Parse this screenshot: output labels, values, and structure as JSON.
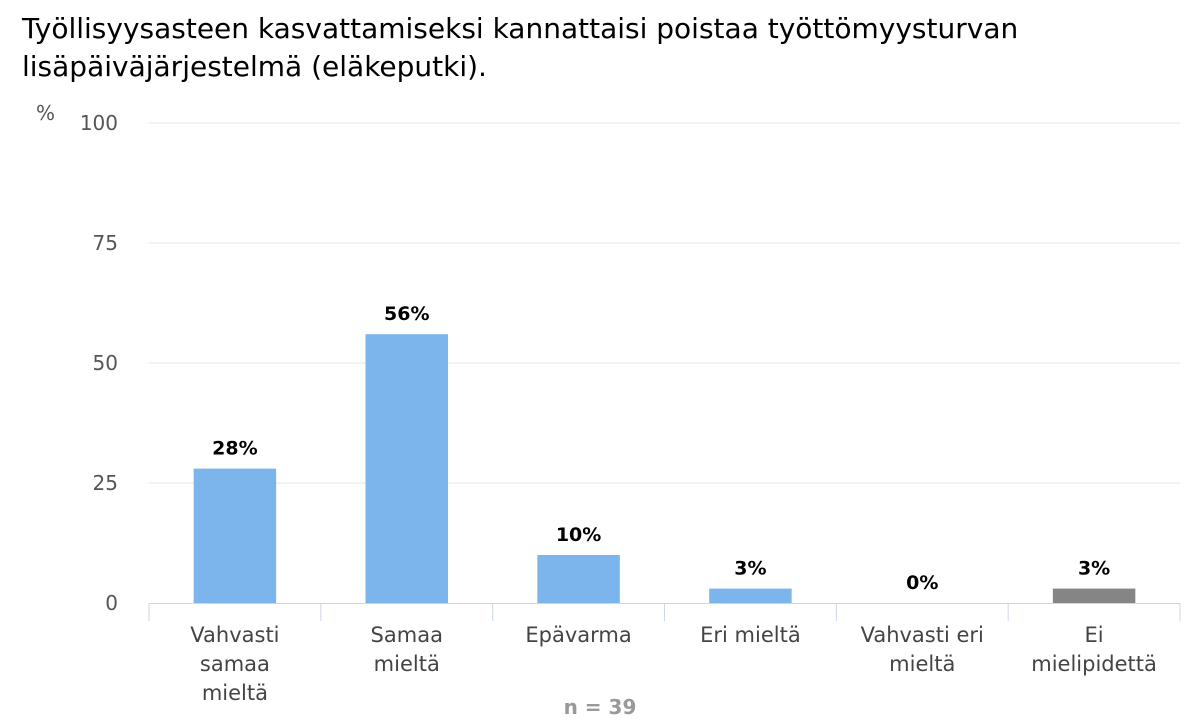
{
  "title": "Työllisyysasteen kasvattamiseksi kannattaisi poistaa työttömyysturvan lisäpäiväjärjestelmä (eläkeputki).",
  "footer": "n = 39",
  "chart_data": {
    "type": "bar",
    "title": "Työllisyysasteen kasvattamiseksi kannattaisi poistaa työttömyysturvan lisäpäiväjärjestelmä (eläkeputki).",
    "xlabel": "",
    "ylabel": "%",
    "ylim": [
      0,
      100
    ],
    "yticks": [
      0,
      25,
      50,
      75,
      100
    ],
    "grid": true,
    "categories": [
      [
        "Vahvasti",
        "samaa",
        "mieltä"
      ],
      [
        "Samaa",
        "mieltä"
      ],
      [
        "Epävarma"
      ],
      [
        "Eri mieltä"
      ],
      [
        "Vahvasti eri",
        "mieltä"
      ],
      [
        "Ei",
        "mielipidettä"
      ]
    ],
    "values": [
      28,
      56,
      10,
      3,
      0,
      3
    ],
    "data_labels": [
      "28%",
      "56%",
      "10%",
      "3%",
      "0%",
      "3%"
    ],
    "colors": [
      "#7cb5ec",
      "#7cb5ec",
      "#7cb5ec",
      "#7cb5ec",
      "#7cb5ec",
      "#858585"
    ]
  }
}
